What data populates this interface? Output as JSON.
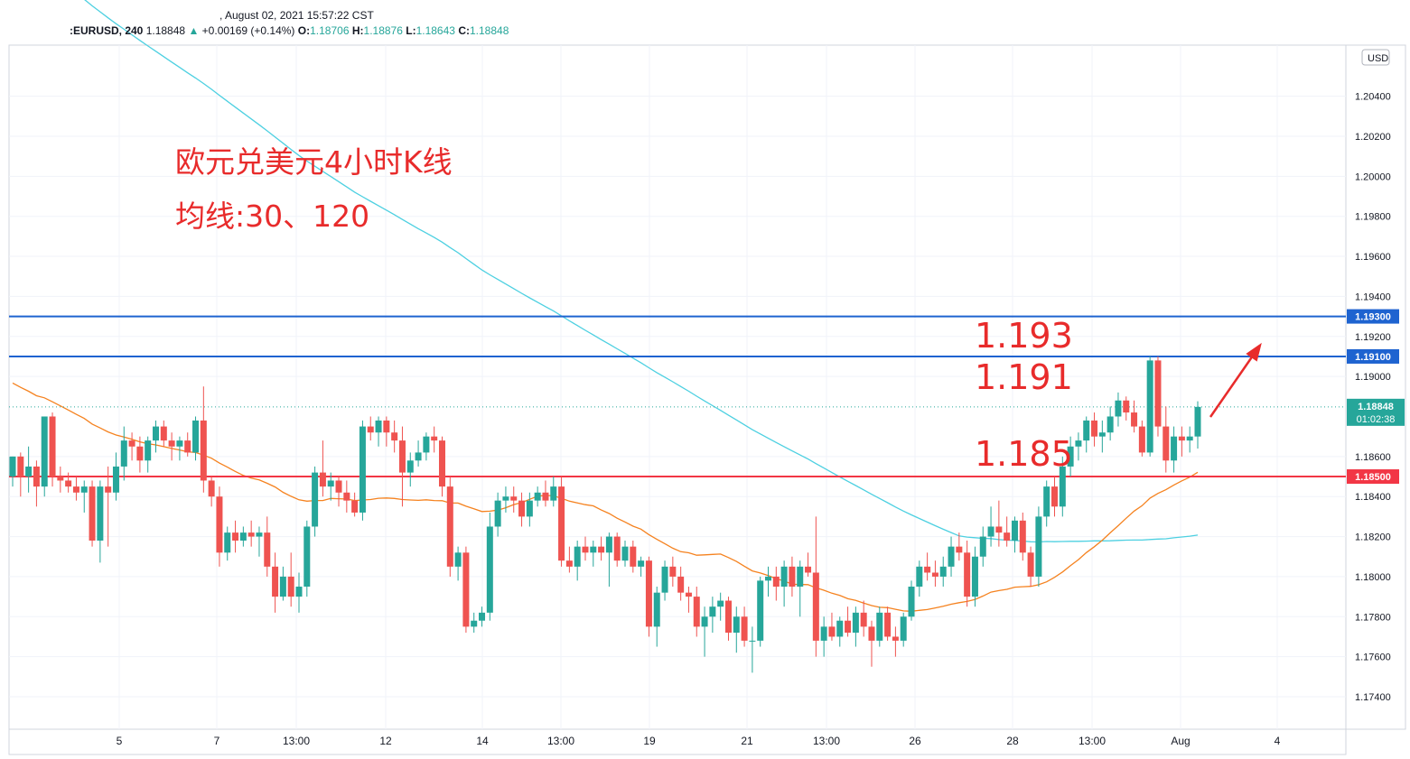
{
  "header": {
    "date_line": ", August 02, 2021 15:57:22 CST",
    "symbol": ":EURUSD, 240",
    "last_price": "1.18848",
    "change": "+0.00169 (+0.14%)",
    "open_label": "O:",
    "open": "1.18706",
    "high_label": "H:",
    "high": "1.18876",
    "low_label": "L:",
    "low": "1.18643",
    "close_label": "C:",
    "close": "1.18848"
  },
  "annotations": {
    "title": "欧元兑美元4小时K线",
    "subtitle": "均线:30、120",
    "level_1193": "1.193",
    "level_1191": "1.191",
    "level_1185": "1.185"
  },
  "colors": {
    "up": "#26a69a",
    "down": "#ef5350",
    "ma30": "#f5821f",
    "ma120": "#4dd0e1",
    "support": "#f23645",
    "resistance": "#1e63d0",
    "annotation": "#e82b2b"
  },
  "chart_data": {
    "type": "candlestick",
    "currency_badge": "USD",
    "yaxis_ticks": [
      "1.20400",
      "1.20200",
      "1.20000",
      "1.19800",
      "1.19600",
      "1.19400",
      "1.19200",
      "1.19000",
      "1.18600",
      "1.18400",
      "1.18200",
      "1.18000",
      "1.17800",
      "1.17600",
      "1.17400"
    ],
    "xaxis_ticks": [
      "5",
      "7",
      "13:00",
      "12",
      "14",
      "13:00",
      "19",
      "21",
      "13:00",
      "26",
      "28",
      "13:00",
      "Aug",
      "4"
    ],
    "horizontal_lines": [
      {
        "value": 1.193,
        "label": "1.19300",
        "kind": "resistance"
      },
      {
        "value": 1.191,
        "label": "1.19100",
        "kind": "resistance"
      },
      {
        "value": 1.185,
        "label": "1.18500",
        "kind": "support"
      }
    ],
    "current_price": {
      "value": 1.18848,
      "label": "1.18848",
      "countdown": "01:02:38"
    },
    "candles": [
      [
        1.185,
        1.186,
        1.1845,
        1.186
      ],
      [
        1.186,
        1.1862,
        1.184,
        1.185
      ],
      [
        1.185,
        1.1865,
        1.1842,
        1.1855
      ],
      [
        1.1855,
        1.1858,
        1.1835,
        1.1845
      ],
      [
        1.1845,
        1.188,
        1.184,
        1.188
      ],
      [
        1.188,
        1.1882,
        1.1845,
        1.185
      ],
      [
        1.185,
        1.1855,
        1.1842,
        1.1848
      ],
      [
        1.1848,
        1.1852,
        1.1842,
        1.1845
      ],
      [
        1.1845,
        1.185,
        1.1838,
        1.1842
      ],
      [
        1.1842,
        1.1848,
        1.1832,
        1.1845
      ],
      [
        1.1845,
        1.1848,
        1.1815,
        1.1818
      ],
      [
        1.1818,
        1.1848,
        1.1807,
        1.1845
      ],
      [
        1.1845,
        1.1855,
        1.1815,
        1.1842
      ],
      [
        1.1842,
        1.1862,
        1.1838,
        1.1855
      ],
      [
        1.1855,
        1.1875,
        1.1848,
        1.1868
      ],
      [
        1.1868,
        1.1872,
        1.1858,
        1.1865
      ],
      [
        1.1865,
        1.187,
        1.1852,
        1.1858
      ],
      [
        1.1858,
        1.187,
        1.1852,
        1.1868
      ],
      [
        1.1868,
        1.1878,
        1.1862,
        1.1875
      ],
      [
        1.1875,
        1.1878,
        1.1865,
        1.1868
      ],
      [
        1.1868,
        1.1872,
        1.1858,
        1.1865
      ],
      [
        1.1865,
        1.187,
        1.1858,
        1.1868
      ],
      [
        1.1868,
        1.1872,
        1.186,
        1.1862
      ],
      [
        1.1862,
        1.188,
        1.1858,
        1.1878
      ],
      [
        1.1878,
        1.1895,
        1.1842,
        1.1848
      ],
      [
        1.1848,
        1.185,
        1.1835,
        1.184
      ],
      [
        1.184,
        1.1845,
        1.1805,
        1.1812
      ],
      [
        1.1812,
        1.1825,
        1.1808,
        1.1822
      ],
      [
        1.1822,
        1.1828,
        1.1812,
        1.1818
      ],
      [
        1.1818,
        1.1825,
        1.1815,
        1.1822
      ],
      [
        1.1822,
        1.1828,
        1.1815,
        1.182
      ],
      [
        1.182,
        1.1825,
        1.181,
        1.1822
      ],
      [
        1.1822,
        1.183,
        1.18,
        1.1805
      ],
      [
        1.1805,
        1.1812,
        1.1782,
        1.179
      ],
      [
        1.179,
        1.1805,
        1.1788,
        1.18
      ],
      [
        1.18,
        1.1812,
        1.1785,
        1.179
      ],
      [
        1.179,
        1.1802,
        1.1782,
        1.1795
      ],
      [
        1.1795,
        1.1828,
        1.179,
        1.1825
      ],
      [
        1.1825,
        1.1855,
        1.182,
        1.1852
      ],
      [
        1.1852,
        1.1868,
        1.184,
        1.1845
      ],
      [
        1.1845,
        1.1852,
        1.1838,
        1.1848
      ],
      [
        1.1848,
        1.185,
        1.1835,
        1.1842
      ],
      [
        1.1842,
        1.1848,
        1.1832,
        1.1838
      ],
      [
        1.1838,
        1.1842,
        1.183,
        1.1832
      ],
      [
        1.1832,
        1.1878,
        1.1828,
        1.1875
      ],
      [
        1.1875,
        1.188,
        1.1868,
        1.1872
      ],
      [
        1.1872,
        1.188,
        1.1865,
        1.1878
      ],
      [
        1.1878,
        1.188,
        1.1865,
        1.1872
      ],
      [
        1.1872,
        1.1878,
        1.1862,
        1.1868
      ],
      [
        1.1868,
        1.1875,
        1.1835,
        1.1852
      ],
      [
        1.1852,
        1.1862,
        1.1845,
        1.1858
      ],
      [
        1.1858,
        1.1868,
        1.1855,
        1.1862
      ],
      [
        1.1862,
        1.1872,
        1.1858,
        1.187
      ],
      [
        1.187,
        1.1875,
        1.1862,
        1.1868
      ],
      [
        1.1868,
        1.187,
        1.184,
        1.1845
      ],
      [
        1.1845,
        1.185,
        1.18,
        1.1805
      ],
      [
        1.1805,
        1.1815,
        1.1798,
        1.1812
      ],
      [
        1.1812,
        1.1815,
        1.1772,
        1.1775
      ],
      [
        1.1775,
        1.1782,
        1.1772,
        1.1778
      ],
      [
        1.1778,
        1.1785,
        1.1775,
        1.1782
      ],
      [
        1.1782,
        1.1832,
        1.1778,
        1.1825
      ],
      [
        1.1825,
        1.1842,
        1.182,
        1.1838
      ],
      [
        1.1838,
        1.1845,
        1.1832,
        1.184
      ],
      [
        1.184,
        1.1845,
        1.1832,
        1.1838
      ],
      [
        1.1838,
        1.1842,
        1.1825,
        1.183
      ],
      [
        1.183,
        1.1842,
        1.1825,
        1.1838
      ],
      [
        1.1838,
        1.1845,
        1.1835,
        1.1842
      ],
      [
        1.1842,
        1.1848,
        1.1835,
        1.1838
      ],
      [
        1.1838,
        1.185,
        1.1835,
        1.1845
      ],
      [
        1.1845,
        1.185,
        1.1805,
        1.1808
      ],
      [
        1.1808,
        1.1815,
        1.1802,
        1.1805
      ],
      [
        1.1805,
        1.1818,
        1.1798,
        1.1815
      ],
      [
        1.1815,
        1.182,
        1.1808,
        1.1812
      ],
      [
        1.1812,
        1.1818,
        1.1805,
        1.1815
      ],
      [
        1.1815,
        1.182,
        1.1808,
        1.1812
      ],
      [
        1.1812,
        1.1822,
        1.1795,
        1.182
      ],
      [
        1.182,
        1.1822,
        1.1805,
        1.1808
      ],
      [
        1.1808,
        1.1818,
        1.1805,
        1.1815
      ],
      [
        1.1815,
        1.1818,
        1.1802,
        1.1805
      ],
      [
        1.1805,
        1.181,
        1.18,
        1.1808
      ],
      [
        1.1808,
        1.181,
        1.177,
        1.1775
      ],
      [
        1.1775,
        1.1795,
        1.1765,
        1.1792
      ],
      [
        1.1792,
        1.1808,
        1.1788,
        1.1805
      ],
      [
        1.1805,
        1.181,
        1.1795,
        1.18
      ],
      [
        1.18,
        1.1805,
        1.1788,
        1.1792
      ],
      [
        1.1792,
        1.1795,
        1.1782,
        1.179
      ],
      [
        1.179,
        1.1795,
        1.177,
        1.1775
      ],
      [
        1.1775,
        1.1785,
        1.176,
        1.178
      ],
      [
        1.178,
        1.179,
        1.1772,
        1.1785
      ],
      [
        1.1785,
        1.1792,
        1.1778,
        1.1788
      ],
      [
        1.1788,
        1.179,
        1.1768,
        1.1772
      ],
      [
        1.1772,
        1.1785,
        1.1762,
        1.178
      ],
      [
        1.178,
        1.1785,
        1.1765,
        1.1768
      ],
      [
        1.1768,
        1.1775,
        1.1752,
        1.1768
      ],
      [
        1.1768,
        1.18,
        1.1765,
        1.1798
      ],
      [
        1.1798,
        1.1805,
        1.179,
        1.18
      ],
      [
        1.18,
        1.1805,
        1.1788,
        1.1795
      ],
      [
        1.1795,
        1.1808,
        1.1785,
        1.1805
      ],
      [
        1.1805,
        1.181,
        1.179,
        1.1795
      ],
      [
        1.1795,
        1.1808,
        1.178,
        1.1805
      ],
      [
        1.1805,
        1.1812,
        1.18,
        1.1802
      ],
      [
        1.1802,
        1.183,
        1.176,
        1.1768
      ],
      [
        1.1768,
        1.178,
        1.176,
        1.1775
      ],
      [
        1.1775,
        1.1782,
        1.1768,
        1.177
      ],
      [
        1.177,
        1.178,
        1.1765,
        1.1778
      ],
      [
        1.1778,
        1.1785,
        1.177,
        1.1772
      ],
      [
        1.1772,
        1.1785,
        1.1765,
        1.1782
      ],
      [
        1.1782,
        1.1788,
        1.177,
        1.1775
      ],
      [
        1.1775,
        1.1778,
        1.1755,
        1.1768
      ],
      [
        1.1768,
        1.1785,
        1.1765,
        1.1782
      ],
      [
        1.1782,
        1.1785,
        1.1768,
        1.177
      ],
      [
        1.177,
        1.1775,
        1.176,
        1.1768
      ],
      [
        1.1768,
        1.1782,
        1.1765,
        1.178
      ],
      [
        1.178,
        1.1798,
        1.1778,
        1.1795
      ],
      [
        1.1795,
        1.1808,
        1.179,
        1.1805
      ],
      [
        1.1805,
        1.1812,
        1.1798,
        1.1802
      ],
      [
        1.1802,
        1.1808,
        1.1795,
        1.18
      ],
      [
        1.18,
        1.181,
        1.1795,
        1.1805
      ],
      [
        1.1805,
        1.182,
        1.18,
        1.1815
      ],
      [
        1.1815,
        1.1822,
        1.1808,
        1.1812
      ],
      [
        1.1812,
        1.1818,
        1.1785,
        1.179
      ],
      [
        1.179,
        1.1815,
        1.1785,
        1.181
      ],
      [
        1.181,
        1.1825,
        1.1805,
        1.182
      ],
      [
        1.182,
        1.1835,
        1.1815,
        1.1825
      ],
      [
        1.1825,
        1.1838,
        1.1815,
        1.1822
      ],
      [
        1.1822,
        1.183,
        1.1815,
        1.1818
      ],
      [
        1.1818,
        1.183,
        1.1812,
        1.1828
      ],
      [
        1.1828,
        1.1832,
        1.1808,
        1.1812
      ],
      [
        1.1812,
        1.1815,
        1.1795,
        1.18
      ],
      [
        1.18,
        1.1835,
        1.1795,
        1.183
      ],
      [
        1.183,
        1.1848,
        1.1825,
        1.1845
      ],
      [
        1.1845,
        1.185,
        1.183,
        1.1835
      ],
      [
        1.1835,
        1.186,
        1.183,
        1.1855
      ],
      [
        1.1855,
        1.187,
        1.185,
        1.1865
      ],
      [
        1.1865,
        1.1872,
        1.1858,
        1.1868
      ],
      [
        1.1868,
        1.188,
        1.1862,
        1.1878
      ],
      [
        1.1878,
        1.1882,
        1.1865,
        1.187
      ],
      [
        1.187,
        1.1878,
        1.1862,
        1.1872
      ],
      [
        1.1872,
        1.1885,
        1.1868,
        1.188
      ],
      [
        1.188,
        1.1892,
        1.1875,
        1.1888
      ],
      [
        1.1888,
        1.189,
        1.1878,
        1.1882
      ],
      [
        1.1882,
        1.1888,
        1.1872,
        1.1875
      ],
      [
        1.1875,
        1.1878,
        1.186,
        1.1862
      ],
      [
        1.1862,
        1.191,
        1.186,
        1.1908
      ],
      [
        1.1908,
        1.191,
        1.187,
        1.1875
      ],
      [
        1.1875,
        1.1885,
        1.1852,
        1.1858
      ],
      [
        1.1858,
        1.1875,
        1.1852,
        1.187
      ],
      [
        1.187,
        1.1875,
        1.186,
        1.1868
      ],
      [
        1.1868,
        1.1875,
        1.1862,
        1.187
      ],
      [
        1.187,
        1.18876,
        1.1864,
        1.18848
      ]
    ]
  }
}
